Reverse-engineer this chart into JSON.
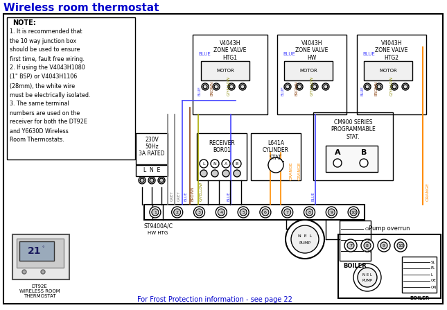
{
  "title": "Wireless room thermostat",
  "title_color": "#0000CC",
  "background_color": "#FFFFFF",
  "border_color": "#000000",
  "note_header": "NOTE:",
  "note_lines": [
    "1. It is recommended that",
    "the 10 way junction box",
    "should be used to ensure",
    "first time, fault free wiring.",
    "2. If using the V4043H1080",
    "(1\" BSP) or V4043H1106",
    "(28mm), the white wire",
    "must be electrically isolated.",
    "3. The same terminal",
    "numbers are used on the",
    "receiver for both the DT92E",
    "and Y6630D Wireless",
    "Room Thermostats."
  ],
  "footer_text": "For Frost Protection information - see page 22",
  "footer_color": "#0000CC",
  "zone_valve_1_label": "V4043H\nZONE VALVE\nHTG1",
  "zone_valve_2_label": "V4043H\nZONE VALVE\nHW",
  "zone_valve_3_label": "V4043H\nZONE VALVE\nHTG2",
  "pump_overrun_label": "Pump overrun",
  "receiver_label": "RECEIVER\nBOR01",
  "cylinder_stat_label": "L641A\nCYLINDER\nSTAT.",
  "cm900_label": "CM900 SERIES\nPROGRAMMABLE\nSTAT.",
  "st9400_label": "ST9400A/C",
  "hw_htg_label": "HW HTG",
  "boiler_label": "BOILER",
  "pump_label": "N E L\nPUMP",
  "dt92e_label": "DT92E\nWIRELESS ROOM\nTHERMOSTAT",
  "supply_label": "230V\n50Hz\n3A RATED",
  "lne_label": "L  N  E",
  "wire_colors": {
    "grey": "#808080",
    "blue": "#4444FF",
    "brown": "#8B4513",
    "green_yellow": "#AAAA00",
    "orange": "#FF8C00",
    "black": "#000000"
  }
}
